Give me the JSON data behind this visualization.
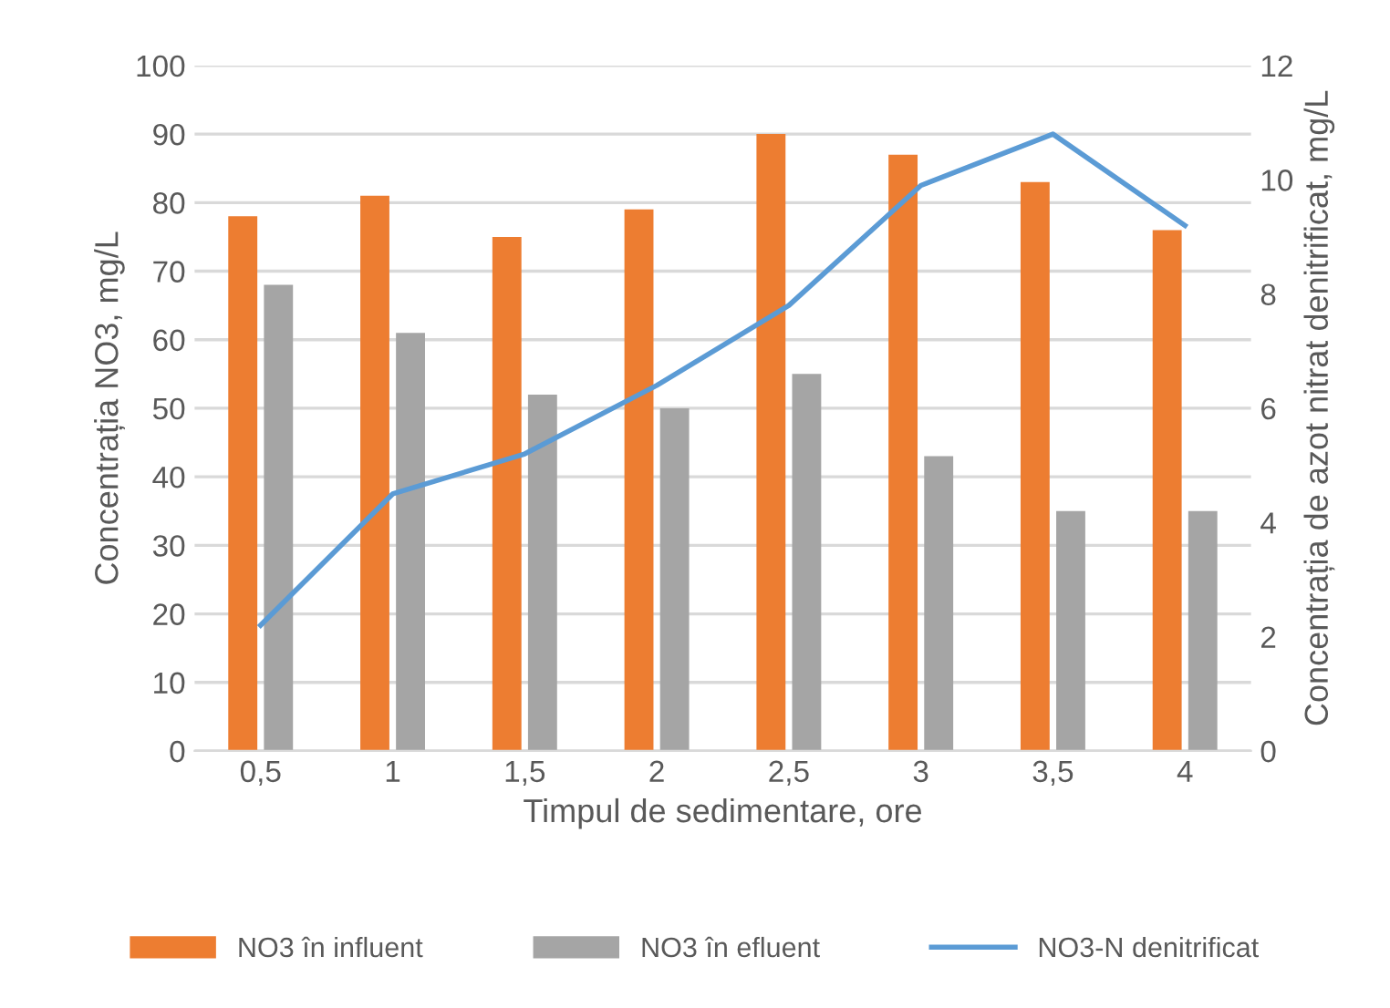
{
  "chart_data": {
    "type": "bar",
    "categories": [
      "0,5",
      "1",
      "1,5",
      "2",
      "2,5",
      "3",
      "3,5",
      "4"
    ],
    "xlabel": "Timpul de sedimentare, ore",
    "ylabel": "Concentrația NO3, mg/L",
    "y2label": "Concentrația de azot nitrat denitrificat, mg/L",
    "ylim": [
      0,
      100
    ],
    "yticks": [
      0,
      10,
      20,
      30,
      40,
      50,
      60,
      70,
      80,
      90,
      100
    ],
    "y2lim": [
      0,
      12
    ],
    "y2ticks": [
      0,
      2,
      4,
      6,
      8,
      10,
      12
    ],
    "grid": "y",
    "legend": "bottom",
    "series": [
      {
        "name": "NO3 în influent",
        "color": "#ed7d31",
        "values": [
          78,
          81,
          75,
          79,
          90,
          87,
          83,
          76
        ]
      },
      {
        "name": "NO3 în efluent",
        "color": "#a5a5a5",
        "values": [
          68,
          61,
          52,
          50,
          55,
          43,
          35,
          35
        ]
      },
      {
        "name": "NO3-N denitrificat",
        "type": "line",
        "axis": "y2",
        "color": "#5b9bd5",
        "values": [
          2.2,
          4.5,
          5.2,
          6.4,
          7.8,
          9.9,
          10.8,
          9.2
        ]
      }
    ]
  }
}
